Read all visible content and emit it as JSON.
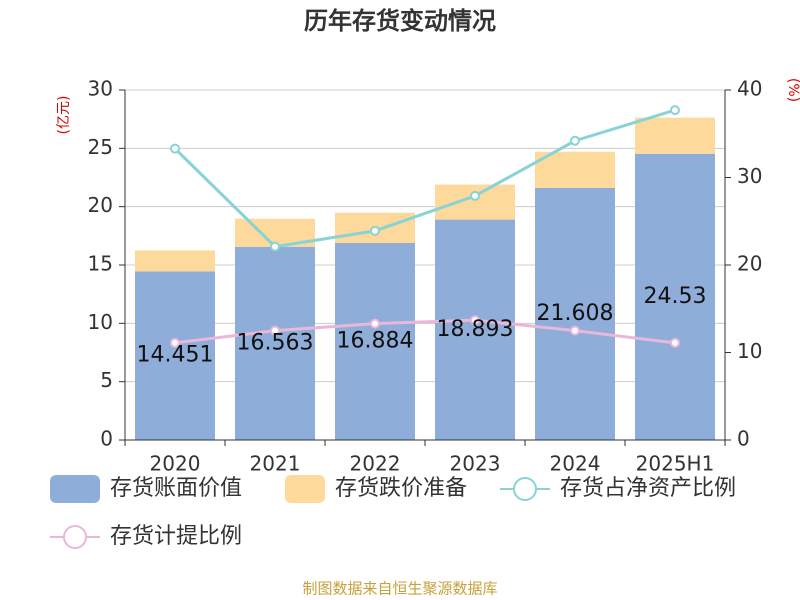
{
  "chart_data": {
    "type": "bar",
    "title": "历年存货变动情况",
    "ylabel": "(亿元)",
    "y2label": "(%)",
    "categories": [
      "2020",
      "2021",
      "2022",
      "2023",
      "2024",
      "2025H1"
    ],
    "series": [
      {
        "name": "存货账面价值",
        "color": "#8eadd9",
        "type": "bar",
        "values": [
          14.451,
          16.563,
          16.884,
          18.893,
          21.608,
          24.53
        ]
      },
      {
        "name": "存货跌价准备",
        "color": "#fed99c",
        "type": "bar",
        "values": [
          1.8,
          2.4,
          2.6,
          3.0,
          3.1,
          3.1
        ]
      },
      {
        "name": "存货占净资产比例",
        "color": "#88d3d4",
        "type": "line",
        "axis": "y2",
        "values": [
          33.3,
          22.1,
          23.9,
          27.9,
          34.2,
          37.7
        ]
      },
      {
        "name": "存货计提比例",
        "color": "#e8b7d9",
        "type": "line",
        "axis": "y2",
        "values": [
          11.1,
          12.5,
          13.3,
          13.7,
          12.5,
          11.1
        ]
      }
    ],
    "ylim": [
      0,
      30
    ],
    "yticks": [
      0,
      5,
      10,
      15,
      20,
      25,
      30
    ],
    "y2lim": [
      0,
      40
    ],
    "y2ticks": [
      0,
      10,
      20,
      30,
      40
    ],
    "grid": true,
    "data_labels_series": 0,
    "source": "制图数据来自恒生聚源数据库"
  }
}
